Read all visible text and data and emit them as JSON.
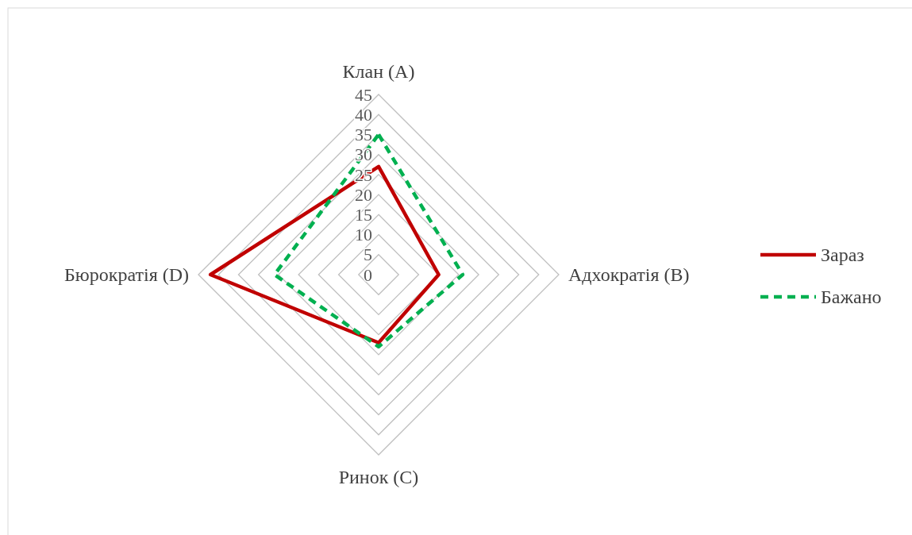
{
  "chart_data": {
    "type": "radar",
    "categories": [
      "Клан (A)",
      "Адхократія (B)",
      "Ринок (C)",
      "Бюрократія (D)"
    ],
    "series": [
      {
        "name": "Зараз",
        "color": "#c00000",
        "values": [
          27,
          15,
          17,
          42
        ],
        "line_style": "solid"
      },
      {
        "name": "Бажано",
        "color": "#00b050",
        "values": [
          35,
          21,
          18,
          26
        ],
        "line_style": "dashed"
      }
    ],
    "ylim": [
      0,
      45
    ],
    "yticks": [
      0,
      5,
      10,
      15,
      20,
      25,
      30,
      35,
      40,
      45
    ],
    "legend": "right",
    "grid": true,
    "marker": "none"
  }
}
